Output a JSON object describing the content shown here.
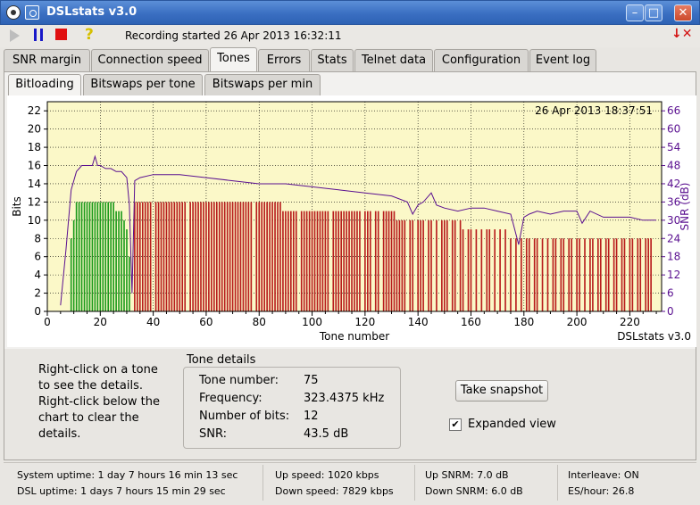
{
  "window": {
    "title": "DSLstats v3.0",
    "min_glyph": "–",
    "max_glyph": "□",
    "close_glyph": "✕"
  },
  "toolbar": {
    "recording": "Recording started 26 Apr 2013 16:32:11",
    "help_glyph": "?",
    "hide_glyph": "↓✕"
  },
  "tabs": [
    "SNR margin",
    "Connection speed",
    "Tones",
    "Errors",
    "Stats",
    "Telnet data",
    "Configuration",
    "Event log"
  ],
  "active_tab": "Tones",
  "subtabs": [
    "Bitloading",
    "Bitswaps per tone",
    "Bitswaps per min"
  ],
  "active_subtab": "Bitloading",
  "chart_data": {
    "type": "bar",
    "timestamp": "26 Apr 2013 18:37:51",
    "watermark": "DSLstats v3.0",
    "xlabel": "Tone number",
    "ylabel": "Bits",
    "y2label": "SNR (dB)",
    "xlim": [
      0,
      232
    ],
    "ylim": [
      0,
      23
    ],
    "y2lim": [
      0,
      69
    ],
    "xticks": [
      0,
      20,
      40,
      60,
      80,
      100,
      120,
      140,
      160,
      180,
      200,
      220
    ],
    "yticks": [
      0,
      2,
      4,
      6,
      8,
      10,
      12,
      14,
      16,
      18,
      20,
      22
    ],
    "y2ticks": [
      0,
      6,
      12,
      18,
      24,
      30,
      36,
      42,
      48,
      54,
      60,
      66
    ],
    "grid": true,
    "colors": {
      "upstream": "#1a9a1a",
      "downstream": "#b81c1c",
      "snr": "#5a1090",
      "background": "#fbf8c8"
    },
    "upstream": {
      "tones": [
        9,
        10,
        11,
        12,
        13,
        14,
        15,
        16,
        17,
        18,
        19,
        20,
        21,
        22,
        23,
        24,
        25,
        26,
        27,
        28,
        29,
        30,
        31
      ],
      "bits": [
        8,
        10,
        12,
        12,
        12,
        12,
        12,
        12,
        12,
        12,
        12,
        12,
        12,
        12,
        12,
        12,
        12,
        11,
        11,
        11,
        10,
        9,
        6
      ]
    },
    "downstream": {
      "segments": [
        {
          "from": 33,
          "to": 88,
          "bits": 12
        },
        {
          "from": 89,
          "to": 131,
          "bits": 11
        },
        {
          "from": 132,
          "to": 156,
          "bits": 10
        },
        {
          "from": 157,
          "to": 174,
          "bits": 9
        },
        {
          "from": 175,
          "to": 228,
          "bits": 8
        }
      ],
      "gaps": [
        40,
        53,
        78,
        95,
        107,
        119,
        123,
        126,
        136,
        139,
        143,
        146,
        148,
        152,
        155,
        158,
        161,
        163,
        165,
        168,
        170,
        172,
        174,
        176,
        178,
        180,
        183,
        186,
        188,
        190,
        193,
        196,
        199,
        202,
        204,
        207,
        210,
        213,
        216,
        219,
        222,
        225
      ]
    },
    "snr": {
      "tones": [
        5,
        7,
        9,
        11,
        13,
        15,
        17,
        18,
        19,
        20,
        22,
        24,
        26,
        28,
        30,
        31,
        32,
        33,
        35,
        40,
        50,
        60,
        70,
        80,
        90,
        100,
        110,
        120,
        130,
        136,
        138,
        140,
        142,
        145,
        147,
        150,
        155,
        160,
        165,
        170,
        175,
        178,
        180,
        182,
        185,
        190,
        195,
        200,
        202,
        205,
        210,
        215,
        220,
        225,
        230
      ],
      "db": [
        2,
        20,
        40,
        46,
        48,
        48,
        48,
        51,
        48,
        48,
        47,
        47,
        46,
        46,
        44,
        35,
        6,
        43,
        44,
        45,
        45,
        44,
        43,
        42,
        42,
        41,
        40,
        39,
        38,
        36,
        32,
        35,
        36,
        39,
        35,
        34,
        33,
        34,
        34,
        33,
        32,
        22,
        31,
        32,
        33,
        32,
        33,
        33,
        29,
        33,
        31,
        31,
        31,
        30,
        30
      ]
    }
  },
  "tone_details": {
    "heading": "Tone details",
    "hint": "Right-click on a tone to see the details. Right-click below the chart to clear the details.",
    "rows": [
      {
        "label": "Tone number:",
        "value": "75"
      },
      {
        "label": "Frequency:",
        "value": "323.4375 kHz"
      },
      {
        "label": "Number of bits:",
        "value": "12"
      },
      {
        "label": "SNR:",
        "value": "43.5 dB"
      }
    ]
  },
  "buttons": {
    "snapshot": "Take snapshot"
  },
  "expanded_view": {
    "label": "Expanded view",
    "checked": true,
    "check_glyph": "✔"
  },
  "status": {
    "system_uptime": "System uptime: 1 day 7 hours 16 min 13 sec",
    "dsl_uptime": "DSL uptime: 1 days 7 hours 15 min 29 sec",
    "up_speed": "Up speed: 1020 kbps",
    "down_speed": "Down speed: 7829 kbps",
    "up_snrm": "Up SNRM: 7.0 dB",
    "down_snrm": "Down SNRM: 6.0 dB",
    "interleave": "Interleave: ON",
    "es_hour": "ES/hour: 26.8"
  }
}
